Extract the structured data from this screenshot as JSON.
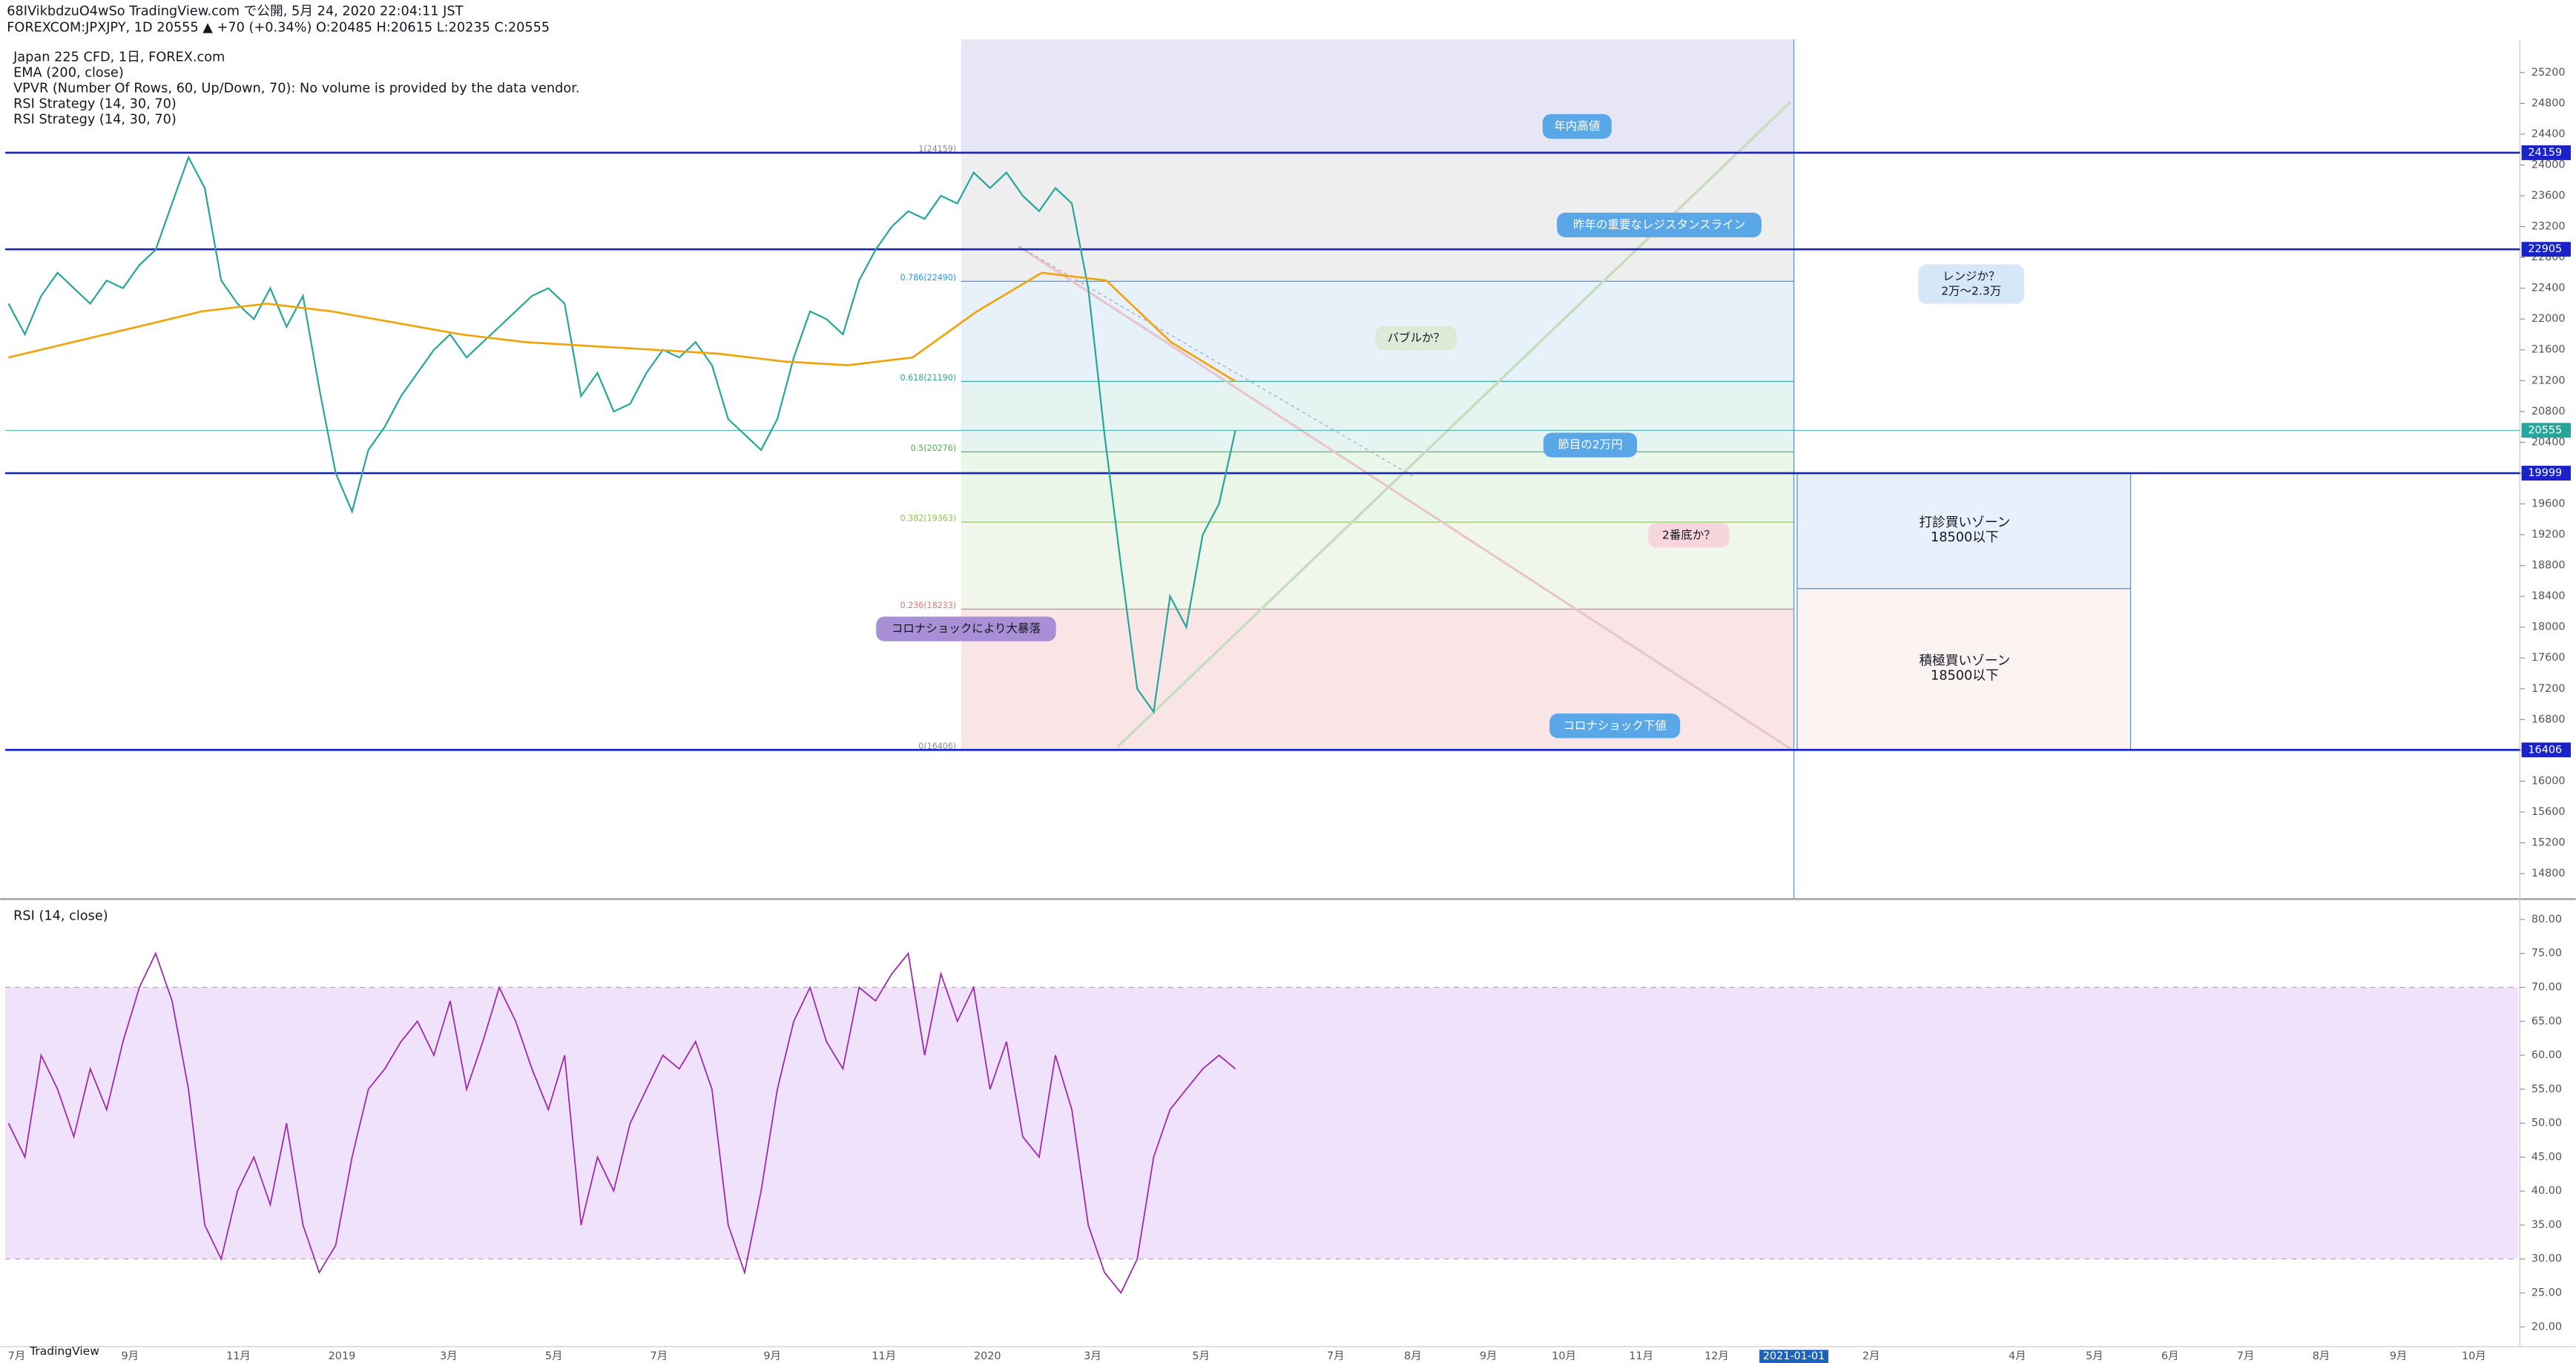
{
  "header": {
    "line1": "68IVikbdzuO4wSo TradingView.com で公開, 5月 24, 2020 22:04:11 JST",
    "line2": "FOREXCOM:JPXJPY, 1D 20555 ▲ +70 (+0.34%) O:20485 H:20615 L:20235 C:20555"
  },
  "legend": [
    "Japan 225 CFD, 1日, FOREX.com",
    "EMA (200, close)",
    "VPVR (Number Of Rows, 60, Up/Down, 70): No volume is provided by the data vendor.",
    "RSI Strategy (14, 30, 70)",
    "RSI Strategy (14, 30, 70)"
  ],
  "price_pane": {
    "ylim": [
      14480,
      25630
    ],
    "yticks": [
      25200,
      24800,
      24400,
      24000,
      23600,
      23200,
      22800,
      22400,
      22000,
      21600,
      21200,
      20800,
      20400,
      20000,
      19600,
      19200,
      18800,
      18400,
      18000,
      17600,
      17200,
      16800,
      16400,
      16000,
      15600,
      15200,
      14800
    ],
    "levels": [
      24159,
      22905,
      19999,
      16406
    ],
    "last_price": 20555,
    "close": [
      22200,
      21800,
      22300,
      22600,
      22400,
      22200,
      22500,
      22400,
      22700,
      22900,
      23500,
      24100,
      23700,
      22500,
      22200,
      22000,
      22400,
      21900,
      22300,
      21100,
      20000,
      19500,
      20300,
      20600,
      21000,
      21300,
      21600,
      21800,
      21500,
      21700,
      21900,
      22100,
      22300,
      22400,
      22200,
      21000,
      21300,
      20800,
      20900,
      21300,
      21600,
      21500,
      21700,
      21400,
      20700,
      20500,
      20300,
      20700,
      21500,
      22100,
      22000,
      21800,
      22500,
      22900,
      23200,
      23400,
      23300,
      23600,
      23500,
      23900,
      23700,
      23900,
      23600,
      23400,
      23700,
      23500,
      22400,
      20500,
      18800,
      17200,
      16900,
      18400,
      18000,
      19200,
      19600,
      20555
    ],
    "ema": [
      21500,
      21700,
      21900,
      22100,
      22200,
      22100,
      21950,
      21800,
      21700,
      21650,
      21600,
      21550,
      21450,
      21400,
      21500,
      22100,
      22600,
      22500,
      21700,
      21190
    ],
    "fib": {
      "values": [
        24159,
        22490,
        21190,
        20276,
        19363,
        18233,
        16406
      ],
      "value_labels": [
        "1(24159)",
        "0.786(22490)",
        "0.618(21190)",
        "0.5(20276)",
        "0.382(19363)",
        "0.236(18233)",
        "0(16406)"
      ]
    },
    "annotations": [
      [
        "年内高値"
      ],
      [
        "昨年の重要なレジスタンスライン"
      ],
      [
        "レンジか？",
        "2万～2.3万"
      ],
      [
        "バブルか？"
      ],
      [
        "節目の2万円"
      ],
      [
        "2番底か？"
      ],
      [
        "コロナショックにより大暴落"
      ],
      [
        "コロナショック下値"
      ]
    ],
    "zones": [
      {
        "title": "打診買いゾーン",
        "note": "18500以下"
      },
      {
        "title": "積極買いゾーン",
        "note": "18500以下"
      }
    ]
  },
  "rsi_pane": {
    "title": "RSI (14, close)",
    "ylim": [
      17.1,
      82.4
    ],
    "yticks": [
      {
        "value": 80,
        "label": "80.00"
      },
      {
        "value": 75,
        "label": "75.00"
      },
      {
        "value": 70,
        "label": "70.00"
      },
      {
        "value": 65,
        "label": "65.00"
      },
      {
        "value": 60,
        "label": "60.00"
      },
      {
        "value": 55,
        "label": "55.00"
      },
      {
        "value": 50,
        "label": "50.00"
      },
      {
        "value": 45,
        "label": "45.00"
      },
      {
        "value": 40,
        "label": "40.00"
      },
      {
        "value": 35,
        "label": "35.00"
      },
      {
        "value": 30,
        "label": "30.00"
      },
      {
        "value": 25,
        "label": "25.00"
      },
      {
        "value": 20,
        "label": "20.00"
      }
    ],
    "band": [
      30,
      70
    ],
    "values": [
      50,
      45,
      60,
      55,
      48,
      58,
      52,
      62,
      70,
      75,
      68,
      55,
      35,
      30,
      40,
      45,
      38,
      50,
      35,
      28,
      32,
      45,
      55,
      58,
      62,
      65,
      60,
      68,
      55,
      62,
      70,
      65,
      58,
      52,
      60,
      35,
      45,
      40,
      50,
      55,
      60,
      58,
      62,
      55,
      35,
      28,
      40,
      55,
      65,
      70,
      62,
      58,
      70,
      68,
      72,
      75,
      60,
      72,
      65,
      70,
      55,
      62,
      48,
      45,
      60,
      52,
      35,
      28,
      25,
      30,
      45,
      52,
      55,
      58,
      60,
      58
    ]
  },
  "time_axis": {
    "labels": [
      "7月",
      "9月",
      "11月",
      "2019",
      "3月",
      "5月",
      "7月",
      "9月",
      "11月",
      "2020",
      "3月",
      "5月",
      "7月",
      "8月",
      "9月",
      "10月",
      "11月",
      "12月",
      "2021-01-01",
      "2月",
      "4月",
      "5月",
      "6月",
      "7月",
      "8月",
      "9月",
      "10月"
    ]
  },
  "footer": "TradingView"
}
